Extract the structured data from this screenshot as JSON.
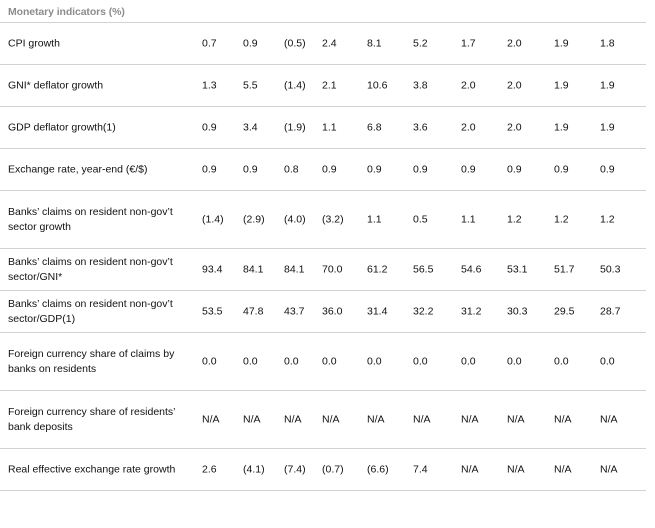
{
  "title": "Monetary indicators (%)",
  "rows": [
    {
      "label": "CPI growth",
      "values": [
        "0.7",
        "0.9",
        "(0.5)",
        "2.4",
        "8.1",
        "5.2",
        "1.7",
        "2.0",
        "1.9",
        "1.8"
      ]
    },
    {
      "label": "GNI* deflator growth",
      "values": [
        "1.3",
        "5.5",
        "(1.4)",
        "2.1",
        "10.6",
        "3.8",
        "2.0",
        "2.0",
        "1.9",
        "1.9"
      ]
    },
    {
      "label": "GDP deflator growth(1)",
      "values": [
        "0.9",
        "3.4",
        "(1.9)",
        "1.1",
        "6.8",
        "3.6",
        "2.0",
        "2.0",
        "1.9",
        "1.9"
      ]
    },
    {
      "label": "Exchange rate, year-end (€/$)",
      "values": [
        "0.9",
        "0.9",
        "0.8",
        "0.9",
        "0.9",
        "0.9",
        "0.9",
        "0.9",
        "0.9",
        "0.9"
      ]
    },
    {
      "label": "Banks’ claims on resident non-gov’t sector growth",
      "values": [
        "(1.4)",
        "(2.9)",
        "(4.0)",
        "(3.2)",
        "1.1",
        "0.5",
        "1.1",
        "1.2",
        "1.2",
        "1.2"
      ]
    },
    {
      "label": "Banks’ claims on resident non-gov’t sector/GNI*",
      "values": [
        "93.4",
        "84.1",
        "84.1",
        "70.0",
        "61.2",
        "56.5",
        "54.6",
        "53.1",
        "51.7",
        "50.3"
      ]
    },
    {
      "label": "Banks’ claims on resident non-gov’t sector/GDP(1)",
      "values": [
        "53.5",
        "47.8",
        "43.7",
        "36.0",
        "31.4",
        "32.2",
        "31.2",
        "30.3",
        "29.5",
        "28.7"
      ]
    },
    {
      "label": "Foreign currency share of claims by banks on residents",
      "values": [
        "0.0",
        "0.0",
        "0.0",
        "0.0",
        "0.0",
        "0.0",
        "0.0",
        "0.0",
        "0.0",
        "0.0"
      ]
    },
    {
      "label": "Foreign currency share of residents’ bank deposits",
      "values": [
        "N/A",
        "N/A",
        "N/A",
        "N/A",
        "N/A",
        "N/A",
        "N/A",
        "N/A",
        "N/A",
        "N/A"
      ]
    },
    {
      "label": "Real effective exchange rate growth",
      "values": [
        "2.6",
        "(4.1)",
        "(7.4)",
        "(0.7)",
        "(6.6)",
        "7.4",
        "N/A",
        "N/A",
        "N/A",
        "N/A"
      ]
    }
  ]
}
